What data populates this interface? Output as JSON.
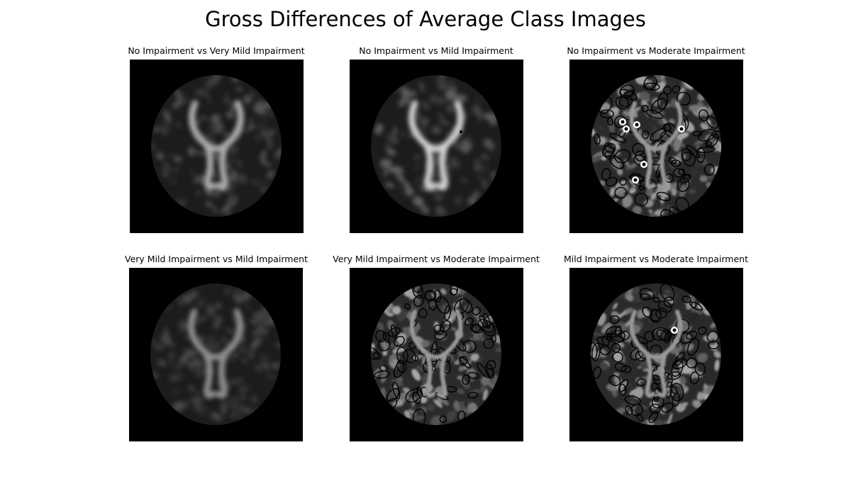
{
  "figure": {
    "title": "Gross Differences of Average Class Images",
    "panels": [
      {
        "title": "No Impairment vs Very Mild Impairment",
        "variant": "smooth"
      },
      {
        "title": "No Impairment vs Mild Impairment",
        "variant": "smooth-bright"
      },
      {
        "title": "No Impairment vs Moderate Impairment",
        "variant": "edges-spots"
      },
      {
        "title": "Very Mild Impairment vs Mild Impairment",
        "variant": "smooth-faint"
      },
      {
        "title": "Very Mild Impairment vs Moderate Impairment",
        "variant": "edges"
      },
      {
        "title": "Mild Impairment vs Moderate Impairment",
        "variant": "edges-spot"
      }
    ],
    "colors": {
      "background": "#ffffff",
      "image_background": "#000000"
    }
  }
}
